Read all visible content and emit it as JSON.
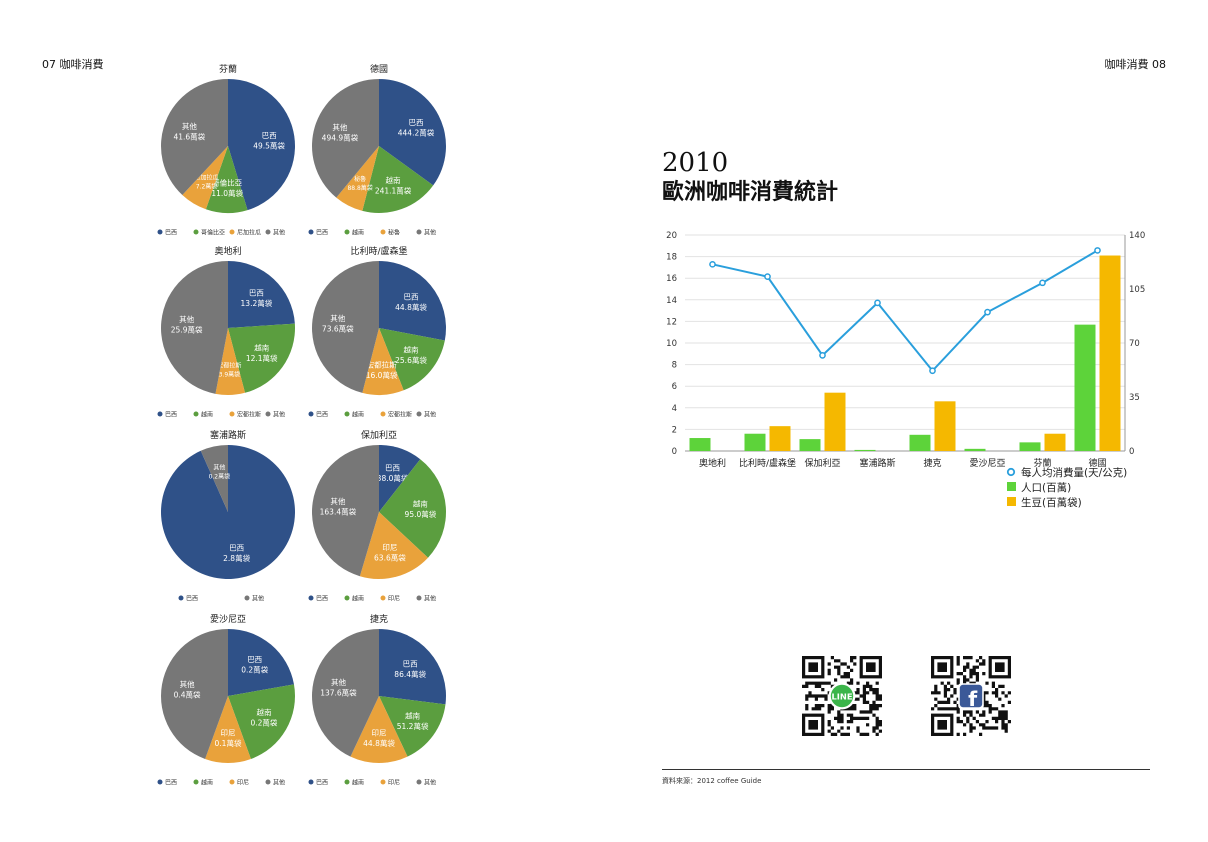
{
  "header": {
    "left": "07  咖啡消費",
    "right": "咖啡消費  08"
  },
  "legend_colors": {
    "巴西": "#2f5188",
    "哥倫比亞": "#5b9e3f",
    "越南": "#5b9e3f",
    "尼加拉瓜": "#e9a23b",
    "秘魯": "#e9a23b",
    "宏都拉斯": "#e9a23b",
    "印尼": "#e9a23b",
    "其他": "#777777"
  },
  "pies": [
    {
      "title": "芬蘭",
      "slices": [
        {
          "name": "巴西",
          "value": 49.5,
          "label": "49.5萬袋"
        },
        {
          "name": "哥倫比亞",
          "value": 11.0,
          "label": "11.0萬袋"
        },
        {
          "name": "尼加拉瓜",
          "value": 7.2,
          "label": "7.2萬袋"
        },
        {
          "name": "其他",
          "value": 41.6,
          "label": "41.6萬袋"
        }
      ]
    },
    {
      "title": "德國",
      "slices": [
        {
          "name": "巴西",
          "value": 444.2,
          "label": "444.2萬袋"
        },
        {
          "name": "越南",
          "value": 241.1,
          "label": "241.1萬袋"
        },
        {
          "name": "秘魯",
          "value": 88.8,
          "label": "88.8萬袋"
        },
        {
          "name": "其他",
          "value": 494.9,
          "label": "494.9萬袋"
        }
      ]
    },
    {
      "title": "奧地利",
      "slices": [
        {
          "name": "巴西",
          "value": 13.2,
          "label": "13.2萬袋"
        },
        {
          "name": "越南",
          "value": 12.1,
          "label": "12.1萬袋"
        },
        {
          "name": "宏都拉斯",
          "value": 3.9,
          "label": "3.9萬袋"
        },
        {
          "name": "其他",
          "value": 25.9,
          "label": "25.9萬袋"
        }
      ]
    },
    {
      "title": "比利時/盧森堡",
      "slices": [
        {
          "name": "巴西",
          "value": 44.8,
          "label": "44.8萬袋"
        },
        {
          "name": "越南",
          "value": 25.6,
          "label": "25.6萬袋"
        },
        {
          "name": "宏都拉斯",
          "value": 16.0,
          "label": "16.0萬袋"
        },
        {
          "name": "其他",
          "value": 73.6,
          "label": "73.6萬袋"
        }
      ]
    },
    {
      "title": "塞浦路斯",
      "slices": [
        {
          "name": "巴西",
          "value": 2.8,
          "label": "2.8萬袋"
        },
        {
          "name": "其他",
          "value": 0.2,
          "label": "0.2萬袋"
        }
      ]
    },
    {
      "title": "保加利亞",
      "slices": [
        {
          "name": "巴西",
          "value": 38.0,
          "label": "38.0萬袋"
        },
        {
          "name": "越南",
          "value": 95.0,
          "label": "95.0萬袋"
        },
        {
          "name": "印尼",
          "value": 63.6,
          "label": "63.6萬袋"
        },
        {
          "name": "其他",
          "value": 163.4,
          "label": "163.4萬袋"
        }
      ]
    },
    {
      "title": "愛沙尼亞",
      "slices": [
        {
          "name": "巴西",
          "value": 0.2,
          "label": "0.2萬袋"
        },
        {
          "name": "越南",
          "value": 0.2,
          "label": "0.2萬袋"
        },
        {
          "name": "印尼",
          "value": 0.1,
          "label": "0.1萬袋"
        },
        {
          "name": "其他",
          "value": 0.4,
          "label": "0.4萬袋"
        }
      ]
    },
    {
      "title": "捷克",
      "slices": [
        {
          "name": "巴西",
          "value": 86.4,
          "label": "86.4萬袋"
        },
        {
          "name": "越南",
          "value": 51.2,
          "label": "51.2萬袋"
        },
        {
          "name": "印尼",
          "value": 44.8,
          "label": "44.8萬袋"
        },
        {
          "name": "其他",
          "value": 137.6,
          "label": "137.6萬袋"
        }
      ]
    }
  ],
  "title": {
    "year": "2010",
    "main": "歐洲咖啡消費統計"
  },
  "chart_data": {
    "type": "bar",
    "categories": [
      "奧地利",
      "比利時/盧森堡",
      "保加利亞",
      "塞浦路斯",
      "捷克",
      "愛沙尼亞",
      "芬蘭",
      "德國"
    ],
    "left_axis": {
      "min": 0,
      "max": 20,
      "ticks": [
        0,
        2,
        4,
        6,
        8,
        10,
        12,
        14,
        16,
        18,
        20
      ]
    },
    "right_axis": {
      "min": 0,
      "max": 140,
      "ticks": [
        0,
        35,
        70,
        105,
        140
      ]
    },
    "series": [
      {
        "name": "每人均消費量(天/公克)",
        "kind": "line",
        "axis": "right",
        "color": "#2a9fdc",
        "values": [
          121,
          113,
          62,
          96,
          52,
          90,
          109,
          130
        ]
      },
      {
        "name": "人口(百萬)",
        "kind": "bar",
        "axis": "left",
        "color": "#5dd33a",
        "values": [
          1.2,
          1.6,
          1.1,
          0.1,
          1.5,
          0.2,
          0.8,
          11.7
        ]
      },
      {
        "name": "生豆(百萬袋)",
        "kind": "bar",
        "axis": "left",
        "color": "#f5b800",
        "values": [
          0,
          2.3,
          5.4,
          0,
          4.6,
          0,
          1.6,
          18.1
        ]
      }
    ],
    "legend_position": "bottom-right",
    "grid": true
  },
  "qr_codes": [
    {
      "name": "LINE",
      "badge": "LINE",
      "color": "#3bb54a"
    },
    {
      "name": "Facebook",
      "badge": "f",
      "color": "#3b5998"
    }
  ],
  "footer": "資料來源：2012 coffee Guide"
}
